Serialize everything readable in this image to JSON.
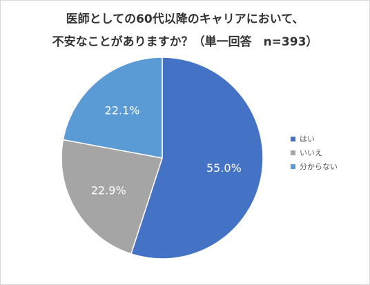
{
  "chart_data": {
    "type": "pie",
    "title_lines": [
      "医師としての60代以降のキャリアにおいて、",
      "不安なことがありますか？（単一回答　n=393）"
    ],
    "categories": [
      "はい",
      "いいえ",
      "分からない"
    ],
    "values": [
      55.0,
      22.9,
      22.1
    ],
    "labels": [
      "55.0%",
      "22.9%",
      "22.1%"
    ],
    "colors": [
      "#4472c4",
      "#a5a5a5",
      "#5b9bd5"
    ],
    "legend_position": "right"
  }
}
